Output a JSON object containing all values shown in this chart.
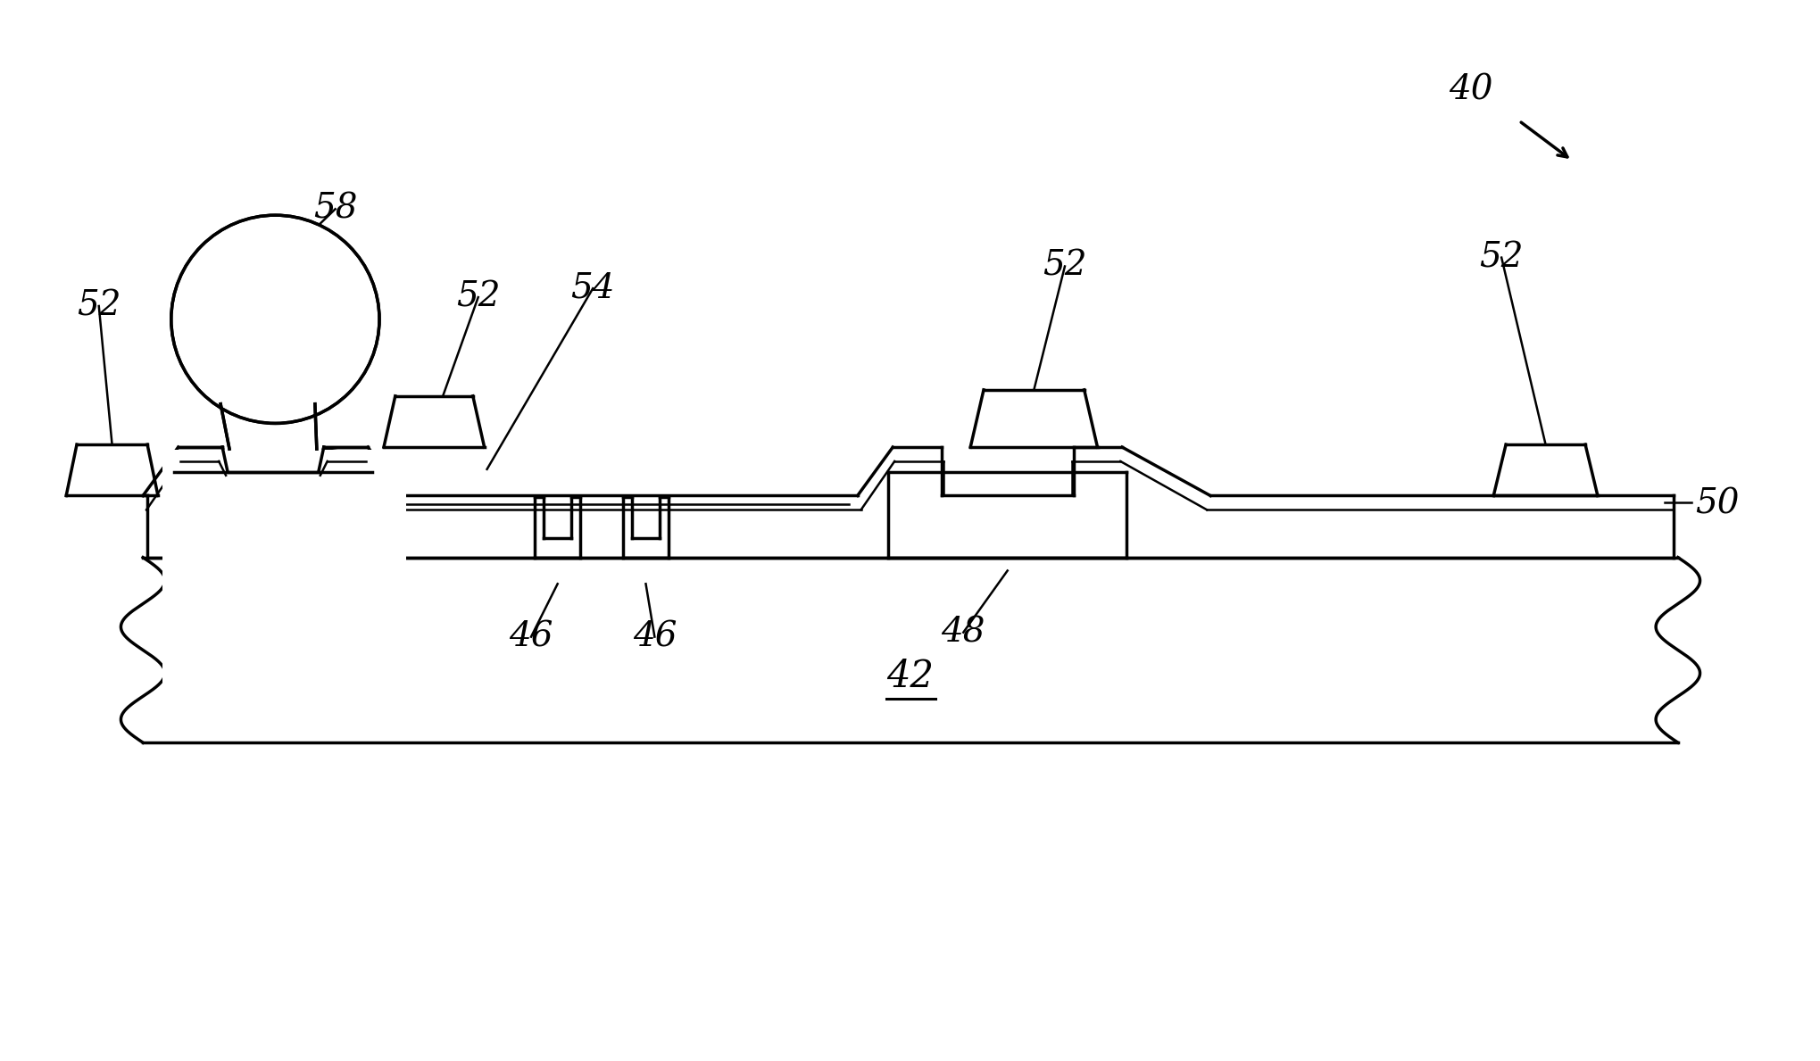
{
  "bg_color": "#ffffff",
  "line_color": "#000000",
  "lw": 2.5,
  "lw_thin": 1.8,
  "fig_width": 20.39,
  "fig_height": 11.89,
  "label_fs": 28,
  "label_fs_large": 30
}
